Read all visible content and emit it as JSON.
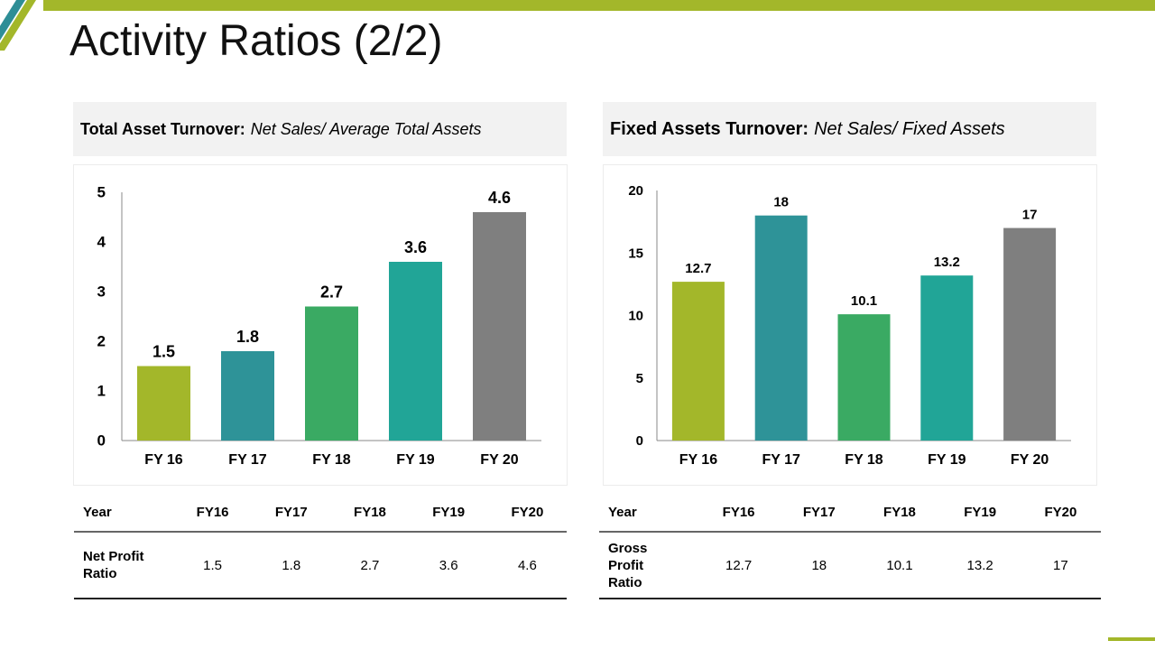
{
  "title": "Activity Ratios (2/2)",
  "colors": {
    "accent_green": "#a3b72a",
    "accent_teal": "#2e8e96",
    "bar_fy16": "#a3b72a",
    "bar_fy17": "#2e9398",
    "bar_fy18": "#3aaa63",
    "bar_fy19": "#21a597",
    "bar_fy20": "#7f7f7f"
  },
  "left": {
    "formula_label": "Total Asset Turnover:",
    "formula_value": "Net Sales/ Average Total Assets",
    "table": {
      "header": [
        "Year",
        "FY16",
        "FY17",
        "FY18",
        "FY19",
        "FY20"
      ],
      "row_label": "Net Profit Ratio",
      "row_values": [
        "1.5",
        "1.8",
        "2.7",
        "3.6",
        "4.6"
      ]
    }
  },
  "right": {
    "formula_label": "Fixed Assets Turnover:",
    "formula_value": "Net Sales/ Fixed Assets",
    "table": {
      "header": [
        "Year",
        "FY16",
        "FY17",
        "FY18",
        "FY19",
        "FY20"
      ],
      "row_label": "Gross Profit Ratio",
      "row_values": [
        "12.7",
        "18",
        "10.1",
        "13.2",
        "17"
      ]
    }
  },
  "chart_data": [
    {
      "type": "bar",
      "title": "",
      "xlabel": "",
      "ylabel": "",
      "categories": [
        "FY 16",
        "FY 17",
        "FY 18",
        "FY 19",
        "FY 20"
      ],
      "values": [
        1.5,
        1.8,
        2.7,
        3.6,
        4.6
      ],
      "data_labels": [
        "1.5",
        "1.8",
        "2.7",
        "3.6",
        "4.6"
      ],
      "yticks": [
        0,
        1,
        2,
        3,
        4,
        5
      ],
      "ylim": [
        0,
        5
      ],
      "grid": false,
      "legend": "none"
    },
    {
      "type": "bar",
      "title": "",
      "xlabel": "",
      "ylabel": "",
      "categories": [
        "FY 16",
        "FY 17",
        "FY 18",
        "FY 19",
        "FY 20"
      ],
      "values": [
        12.7,
        18,
        10.1,
        13.2,
        17
      ],
      "data_labels": [
        "12.7",
        "18",
        "10.1",
        "13.2",
        "17"
      ],
      "yticks": [
        0,
        5,
        10,
        15,
        20
      ],
      "ylim": [
        0,
        20
      ],
      "grid": false,
      "legend": "none"
    }
  ]
}
